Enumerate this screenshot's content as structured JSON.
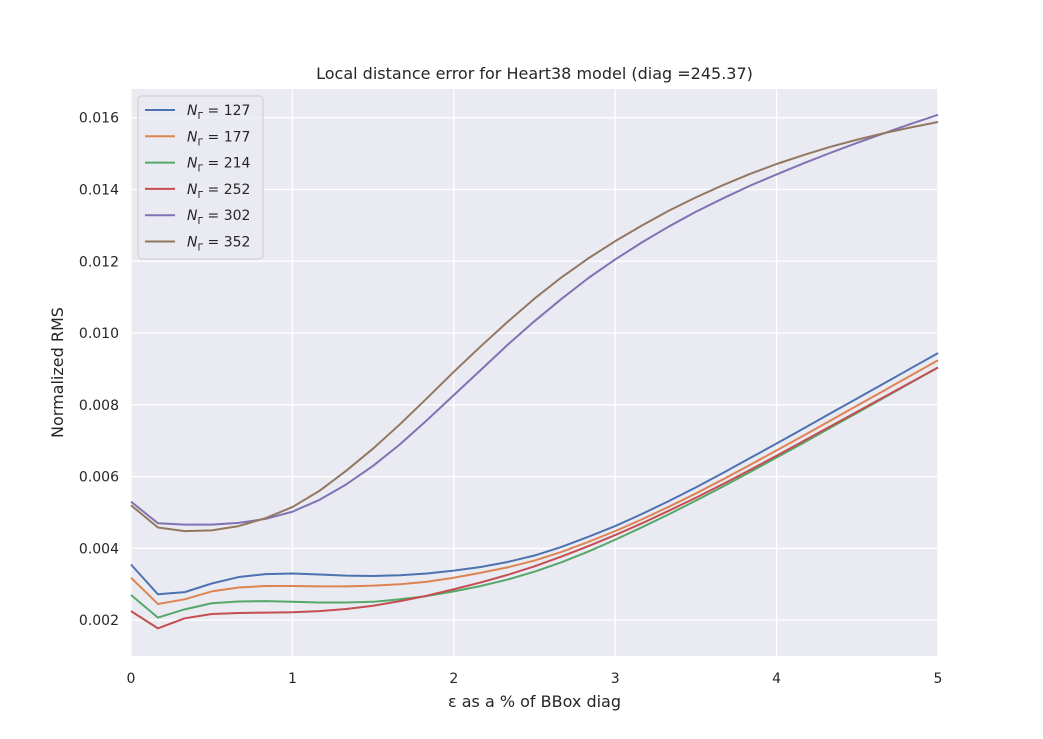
{
  "chart_data": {
    "type": "line",
    "title": "Local distance error for Heart38 model (diag =245.37)",
    "xlabel": "ε as a % of BBox diag",
    "ylabel": "Normalized RMS",
    "xlim": [
      0,
      5
    ],
    "ylim": [
      0.001,
      0.0168
    ],
    "xticks": [
      "0",
      "1",
      "2",
      "3",
      "4",
      "5"
    ],
    "yticks": [
      "0.002",
      "0.004",
      "0.006",
      "0.008",
      "0.010",
      "0.012",
      "0.014",
      "0.016"
    ],
    "grid": true,
    "legend": "top-left",
    "x": [
      0,
      0.167,
      0.333,
      0.5,
      0.667,
      0.833,
      1.0,
      1.167,
      1.333,
      1.5,
      1.667,
      1.833,
      2.0,
      2.167,
      2.333,
      2.5,
      2.667,
      2.833,
      3.0,
      3.167,
      3.333,
      3.5,
      3.667,
      3.833,
      4.0,
      4.167,
      4.333,
      4.5,
      4.667,
      4.833,
      5.0
    ],
    "series": [
      {
        "name": "N_Γ = 127",
        "legend_var": "N",
        "legend_sub": "Γ",
        "legend_rest": " = 127",
        "color": "#4c72b0",
        "values": [
          0.00355,
          0.00272,
          0.00278,
          0.00302,
          0.0032,
          0.00328,
          0.0033,
          0.00327,
          0.00324,
          0.00323,
          0.00325,
          0.0033,
          0.00338,
          0.00348,
          0.00362,
          0.0038,
          0.00404,
          0.00432,
          0.00462,
          0.00496,
          0.00532,
          0.0057,
          0.0061,
          0.00651,
          0.00692,
          0.00734,
          0.00776,
          0.00818,
          0.0086,
          0.00902,
          0.00944
        ]
      },
      {
        "name": "N_Γ = 177",
        "legend_var": "N",
        "legend_sub": "Γ",
        "legend_rest": " = 177",
        "color": "#dd8452",
        "values": [
          0.00318,
          0.00245,
          0.00258,
          0.0028,
          0.00291,
          0.00295,
          0.00295,
          0.00294,
          0.00294,
          0.00296,
          0.003,
          0.00307,
          0.00318,
          0.00332,
          0.00347,
          0.00366,
          0.0039,
          0.00418,
          0.00448,
          0.00481,
          0.00516,
          0.00553,
          0.00592,
          0.00632,
          0.00673,
          0.00714,
          0.00756,
          0.00798,
          0.0084,
          0.00882,
          0.00924
        ]
      },
      {
        "name": "N_Γ = 214",
        "legend_var": "N",
        "legend_sub": "Γ",
        "legend_rest": " = 214",
        "color": "#55a868",
        "values": [
          0.0027,
          0.00207,
          0.0023,
          0.00247,
          0.00252,
          0.00253,
          0.00251,
          0.00249,
          0.00249,
          0.00251,
          0.00258,
          0.00267,
          0.0028,
          0.00295,
          0.00313,
          0.00335,
          0.00361,
          0.00391,
          0.00424,
          0.00459,
          0.00495,
          0.00533,
          0.00572,
          0.00612,
          0.00653,
          0.00694,
          0.00736,
          0.00778,
          0.0082,
          0.00862,
          0.00904
        ]
      },
      {
        "name": "N_Γ = 252",
        "legend_var": "N",
        "legend_sub": "Γ",
        "legend_rest": " = 252",
        "color": "#c44e52",
        "values": [
          0.00225,
          0.00177,
          0.00205,
          0.00217,
          0.0022,
          0.00221,
          0.00222,
          0.00225,
          0.00231,
          0.0024,
          0.00253,
          0.00268,
          0.00286,
          0.00305,
          0.00326,
          0.0035,
          0.00377,
          0.00406,
          0.00437,
          0.0047,
          0.00505,
          0.00541,
          0.00579,
          0.00618,
          0.00658,
          0.00699,
          0.0074,
          0.00781,
          0.00822,
          0.00863,
          0.00904
        ]
      },
      {
        "name": "N_Γ = 302",
        "legend_var": "N",
        "legend_sub": "Γ",
        "legend_rest": " = 302",
        "color": "#8172b3",
        "values": [
          0.0053,
          0.0047,
          0.00466,
          0.00466,
          0.00471,
          0.00482,
          0.00502,
          0.00535,
          0.00578,
          0.0063,
          0.0069,
          0.00757,
          0.00827,
          0.00897,
          0.00967,
          0.01033,
          0.01095,
          0.01153,
          0.01205,
          0.01253,
          0.01297,
          0.01338,
          0.01375,
          0.0141,
          0.01442,
          0.01473,
          0.01502,
          0.0153,
          0.01557,
          0.01583,
          0.01608
        ]
      },
      {
        "name": "N_Γ = 352",
        "legend_var": "N",
        "legend_sub": "Γ",
        "legend_rest": " = 352",
        "color": "#937860",
        "values": [
          0.0052,
          0.00458,
          0.00448,
          0.0045,
          0.00462,
          0.00484,
          0.00515,
          0.0056,
          0.00616,
          0.00678,
          0.00746,
          0.00818,
          0.00892,
          0.00963,
          0.01031,
          0.01096,
          0.01155,
          0.01208,
          0.01256,
          0.013,
          0.01341,
          0.01378,
          0.01412,
          0.01443,
          0.01471,
          0.01496,
          0.01519,
          0.01539,
          0.01557,
          0.01573,
          0.01588
        ]
      }
    ]
  }
}
